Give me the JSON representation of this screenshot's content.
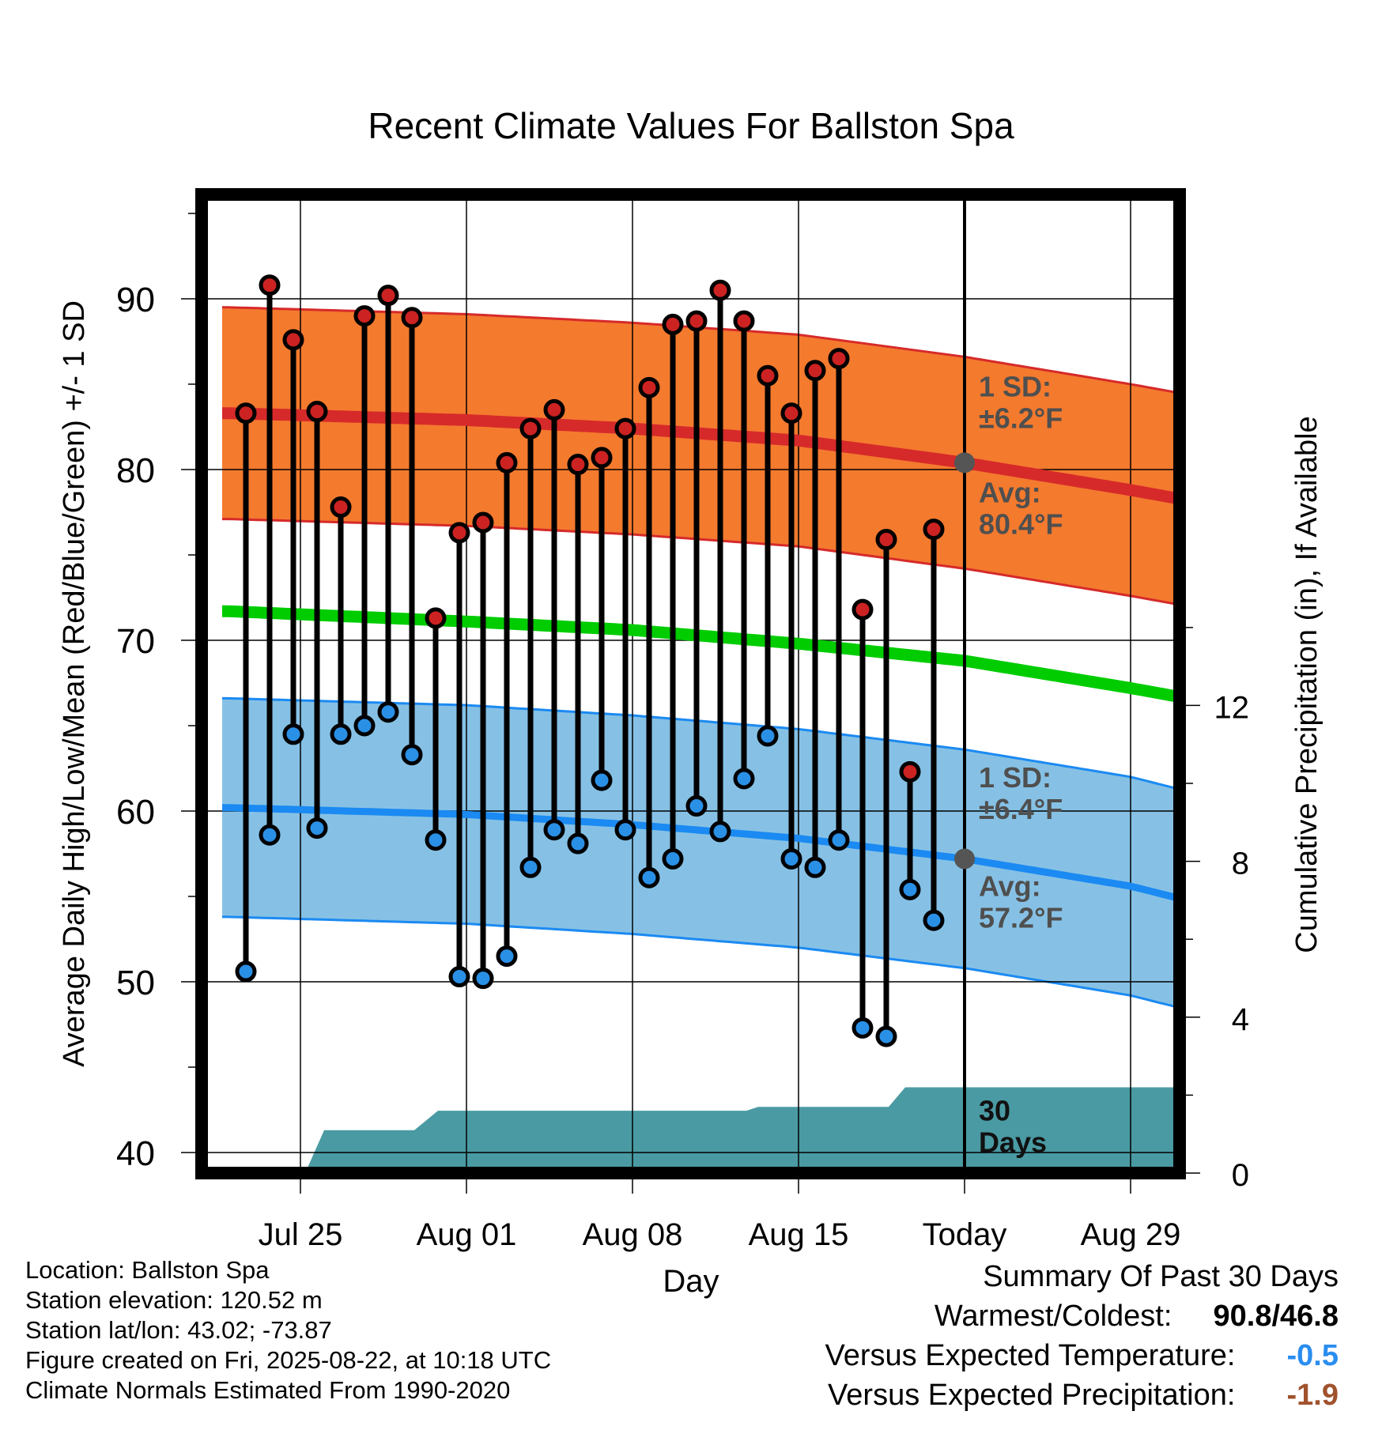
{
  "chart_data": {
    "type": "line",
    "title": "Recent Climate Values For Ballston Spa",
    "xlabel": "Day",
    "ylabel": "Average Daily High/Low/Mean (Red/Blue/Green) +/- 1 SD",
    "ylabel_right": "Cumulative Precipitation (in), If Available",
    "ylim": [
      39,
      96
    ],
    "y_ticks": [
      40,
      50,
      60,
      70,
      80,
      90
    ],
    "y2lim": [
      0,
      18.2
    ],
    "y2_ticks": [
      0,
      4,
      8,
      12
    ],
    "x_ticks": [
      {
        "day": 3,
        "label": "Jul 25"
      },
      {
        "day": 10,
        "label": "Aug 01"
      },
      {
        "day": 17,
        "label": "Aug 08"
      },
      {
        "day": 24,
        "label": "Aug 15"
      },
      {
        "day": 31,
        "label": "Today"
      },
      {
        "day": 38,
        "label": "Aug 29"
      }
    ],
    "xlim": [
      -0.3,
      40
    ],
    "grid": true,
    "today_day": 31,
    "daily_high": [
      [
        0.7,
        83.3
      ],
      [
        1.7,
        90.8
      ],
      [
        2.7,
        87.6
      ],
      [
        3.7,
        83.4
      ],
      [
        4.7,
        77.8
      ],
      [
        5.7,
        89.0
      ],
      [
        6.7,
        90.2
      ],
      [
        7.7,
        88.9
      ],
      [
        8.7,
        71.3
      ],
      [
        9.7,
        76.3
      ],
      [
        10.7,
        76.9
      ],
      [
        11.7,
        80.4
      ],
      [
        12.7,
        82.4
      ],
      [
        13.7,
        83.5
      ],
      [
        14.7,
        80.3
      ],
      [
        15.7,
        80.7
      ],
      [
        16.7,
        82.4
      ],
      [
        17.7,
        84.8
      ],
      [
        18.7,
        88.5
      ],
      [
        19.7,
        88.7
      ],
      [
        20.7,
        90.5
      ],
      [
        21.7,
        88.7
      ],
      [
        22.7,
        85.5
      ],
      [
        23.7,
        83.3
      ],
      [
        24.7,
        85.8
      ],
      [
        25.7,
        86.5
      ],
      [
        26.7,
        71.8
      ],
      [
        27.7,
        75.9
      ],
      [
        28.7,
        62.3
      ],
      [
        29.7,
        76.5
      ]
    ],
    "daily_low": [
      [
        0.7,
        50.6
      ],
      [
        1.7,
        58.6
      ],
      [
        2.7,
        64.5
      ],
      [
        3.7,
        59.0
      ],
      [
        4.7,
        64.5
      ],
      [
        5.7,
        65.0
      ],
      [
        6.7,
        65.8
      ],
      [
        7.7,
        63.3
      ],
      [
        8.7,
        58.3
      ],
      [
        9.7,
        50.3
      ],
      [
        10.7,
        50.2
      ],
      [
        11.7,
        51.5
      ],
      [
        12.7,
        56.7
      ],
      [
        13.7,
        58.9
      ],
      [
        14.7,
        58.1
      ],
      [
        15.7,
        61.8
      ],
      [
        16.7,
        58.9
      ],
      [
        17.7,
        56.1
      ],
      [
        18.7,
        57.2
      ],
      [
        19.7,
        60.3
      ],
      [
        20.7,
        58.8
      ],
      [
        21.7,
        61.9
      ],
      [
        22.7,
        64.4
      ],
      [
        23.7,
        57.2
      ],
      [
        24.7,
        56.7
      ],
      [
        25.7,
        58.3
      ],
      [
        26.7,
        47.3
      ],
      [
        27.7,
        46.8
      ],
      [
        28.7,
        55.4
      ],
      [
        29.7,
        53.6
      ]
    ],
    "normal_high": [
      [
        0,
        83.3
      ],
      [
        10,
        82.9
      ],
      [
        17,
        82.4
      ],
      [
        24,
        81.7
      ],
      [
        31,
        80.4
      ],
      [
        38,
        78.8
      ],
      [
        40,
        78.3
      ]
    ],
    "normal_mean": [
      [
        0,
        71.7
      ],
      [
        10,
        71.1
      ],
      [
        17,
        70.6
      ],
      [
        24,
        69.8
      ],
      [
        31,
        68.8
      ],
      [
        38,
        67.2
      ],
      [
        40,
        66.7
      ]
    ],
    "normal_low": [
      [
        0,
        60.2
      ],
      [
        10,
        59.8
      ],
      [
        17,
        59.2
      ],
      [
        24,
        58.4
      ],
      [
        31,
        57.2
      ],
      [
        38,
        55.6
      ],
      [
        40,
        54.9
      ]
    ],
    "high_sd": 6.2,
    "low_sd": 6.4,
    "precip_cumulative": [
      [
        0,
        0
      ],
      [
        3.2,
        0
      ],
      [
        4.0,
        1.1
      ],
      [
        7.8,
        1.1
      ],
      [
        8.8,
        1.6
      ],
      [
        16.5,
        1.6
      ],
      [
        21.8,
        1.6
      ],
      [
        22.3,
        1.7
      ],
      [
        27.8,
        1.7
      ],
      [
        28.5,
        2.2
      ],
      [
        40,
        2.2
      ]
    ],
    "annotations": {
      "high_sd": [
        "1 SD:",
        "±6.2°F"
      ],
      "high_avg": [
        "Avg:",
        "80.4°F"
      ],
      "low_sd": [
        "1 SD:",
        "±6.4°F"
      ],
      "low_avg": [
        "Avg:",
        "57.2°F"
      ],
      "precip": [
        "30",
        "Days"
      ]
    },
    "colors": {
      "high_band": "#f47a2e",
      "high_line": "#d62a2a",
      "mean_line": "#00cc00",
      "low_band": "#86c1e5",
      "low_line": "#1b8af2",
      "precip": "#4a9aa3",
      "high_dot": "#cc2222",
      "low_dot": "#2a90e6",
      "avg_marker": "#555555",
      "annotation": "#4f4f4f"
    }
  },
  "info": {
    "location": "Location: Ballston Spa",
    "elevation": "Station elevation: 120.52 m",
    "latlon": "Station lat/lon: 43.02; -73.87",
    "created": "Figure created on Fri, 2025-08-22, at 10:18 UTC",
    "normals": "Climate Normals Estimated From 1990-2020"
  },
  "summary": {
    "title": "Summary Of Past 30 Days",
    "warmest_label": "Warmest/Coldest:",
    "warmest_value": "90.8/46.8",
    "temp_label": "Versus Expected Temperature:",
    "temp_value": "-0.5",
    "temp_color": "#2a8df0",
    "precip_label": "Versus Expected Precipitation:",
    "precip_value": "-1.9",
    "precip_color": "#a0522d"
  }
}
